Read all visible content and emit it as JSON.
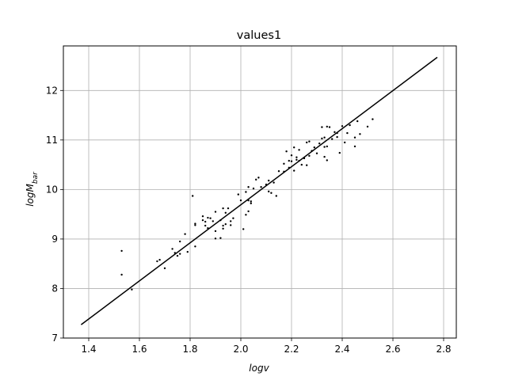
{
  "chart_data": {
    "type": "scatter",
    "title": "values1",
    "xlabel": "logv",
    "ylabel_main": "logM",
    "ylabel_sub": "bar",
    "xlim": [
      1.3,
      2.85
    ],
    "ylim": [
      7.0,
      12.9
    ],
    "xticks": [
      1.4,
      1.6,
      1.8,
      2.0,
      2.2,
      2.4,
      2.6,
      2.8
    ],
    "xtick_labels": [
      "1.4",
      "1.6",
      "1.8",
      "2.0",
      "2.2",
      "2.4",
      "2.6",
      "2.8"
    ],
    "yticks": [
      7,
      8,
      9,
      10,
      11,
      12
    ],
    "ytick_labels": [
      "7",
      "8",
      "9",
      "10",
      "11",
      "12"
    ],
    "grid": true,
    "colors": {
      "points": "#000000",
      "line": "#000000",
      "grid": "#b0b0b0",
      "axes": "#000000"
    },
    "fit_line": {
      "x": [
        1.37,
        2.775
      ],
      "y": [
        7.27,
        12.67
      ]
    },
    "points": [
      [
        1.53,
        8.76
      ],
      [
        1.53,
        8.28
      ],
      [
        1.57,
        7.98
      ],
      [
        1.67,
        8.55
      ],
      [
        1.68,
        8.58
      ],
      [
        1.7,
        8.41
      ],
      [
        1.73,
        8.8
      ],
      [
        1.74,
        8.72
      ],
      [
        1.75,
        8.66
      ],
      [
        1.76,
        8.7
      ],
      [
        1.76,
        8.95
      ],
      [
        1.78,
        9.1
      ],
      [
        1.79,
        8.74
      ],
      [
        1.81,
        9.87
      ],
      [
        1.82,
        9.28
      ],
      [
        1.82,
        9.31
      ],
      [
        1.82,
        8.85
      ],
      [
        1.85,
        9.38
      ],
      [
        1.85,
        9.46
      ],
      [
        1.86,
        9.35
      ],
      [
        1.86,
        9.27
      ],
      [
        1.87,
        9.43
      ],
      [
        1.87,
        9.22
      ],
      [
        1.88,
        9.42
      ],
      [
        1.89,
        9.36
      ],
      [
        1.9,
        9.16
      ],
      [
        1.9,
        9.55
      ],
      [
        1.9,
        9.01
      ],
      [
        1.92,
        9.02
      ],
      [
        1.92,
        9.38
      ],
      [
        1.93,
        9.62
      ],
      [
        1.93,
        9.27
      ],
      [
        1.93,
        9.21
      ],
      [
        1.94,
        9.53
      ],
      [
        1.94,
        9.3
      ],
      [
        1.95,
        9.62
      ],
      [
        1.96,
        9.28
      ],
      [
        1.96,
        9.36
      ],
      [
        1.97,
        9.42
      ],
      [
        1.99,
        9.9
      ],
      [
        2.0,
        9.78
      ],
      [
        2.01,
        9.2
      ],
      [
        2.02,
        9.95
      ],
      [
        2.02,
        9.49
      ],
      [
        2.03,
        9.78
      ],
      [
        2.03,
        10.05
      ],
      [
        2.03,
        9.56
      ],
      [
        2.04,
        9.72
      ],
      [
        2.04,
        9.76
      ],
      [
        2.05,
        10.02
      ],
      [
        2.06,
        10.2
      ],
      [
        2.07,
        10.24
      ],
      [
        2.08,
        10.05
      ],
      [
        2.1,
        10.1
      ],
      [
        2.11,
        10.18
      ],
      [
        2.11,
        9.96
      ],
      [
        2.12,
        9.93
      ],
      [
        2.13,
        10.14
      ],
      [
        2.14,
        9.87
      ],
      [
        2.15,
        10.37
      ],
      [
        2.17,
        10.36
      ],
      [
        2.17,
        10.52
      ],
      [
        2.18,
        10.77
      ],
      [
        2.19,
        10.44
      ],
      [
        2.19,
        10.58
      ],
      [
        2.2,
        10.57
      ],
      [
        2.2,
        10.69
      ],
      [
        2.21,
        10.85
      ],
      [
        2.21,
        10.38
      ],
      [
        2.22,
        10.65
      ],
      [
        2.22,
        10.6
      ],
      [
        2.23,
        10.8
      ],
      [
        2.23,
        10.58
      ],
      [
        2.24,
        10.5
      ],
      [
        2.25,
        10.63
      ],
      [
        2.26,
        10.95
      ],
      [
        2.26,
        10.49
      ],
      [
        2.27,
        10.68
      ],
      [
        2.27,
        10.97
      ],
      [
        2.28,
        10.78
      ],
      [
        2.29,
        10.85
      ],
      [
        2.3,
        10.73
      ],
      [
        2.31,
        10.93
      ],
      [
        2.32,
        11.26
      ],
      [
        2.32,
        11.03
      ],
      [
        2.33,
        11.05
      ],
      [
        2.33,
        10.66
      ],
      [
        2.33,
        10.86
      ],
      [
        2.34,
        10.87
      ],
      [
        2.34,
        10.59
      ],
      [
        2.35,
        11.26
      ],
      [
        2.36,
        11.02
      ],
      [
        2.37,
        11.16
      ],
      [
        2.38,
        11.06
      ],
      [
        2.38,
        11.14
      ],
      [
        2.39,
        10.74
      ],
      [
        2.4,
        11.28
      ],
      [
        2.41,
        10.95
      ],
      [
        2.42,
        11.14
      ],
      [
        2.43,
        11.3
      ],
      [
        2.45,
        11.05
      ],
      [
        2.45,
        10.87
      ],
      [
        2.46,
        11.38
      ],
      [
        2.47,
        11.12
      ],
      [
        2.5,
        11.27
      ],
      [
        2.52,
        11.42
      ],
      [
        2.34,
        11.27
      ]
    ]
  }
}
